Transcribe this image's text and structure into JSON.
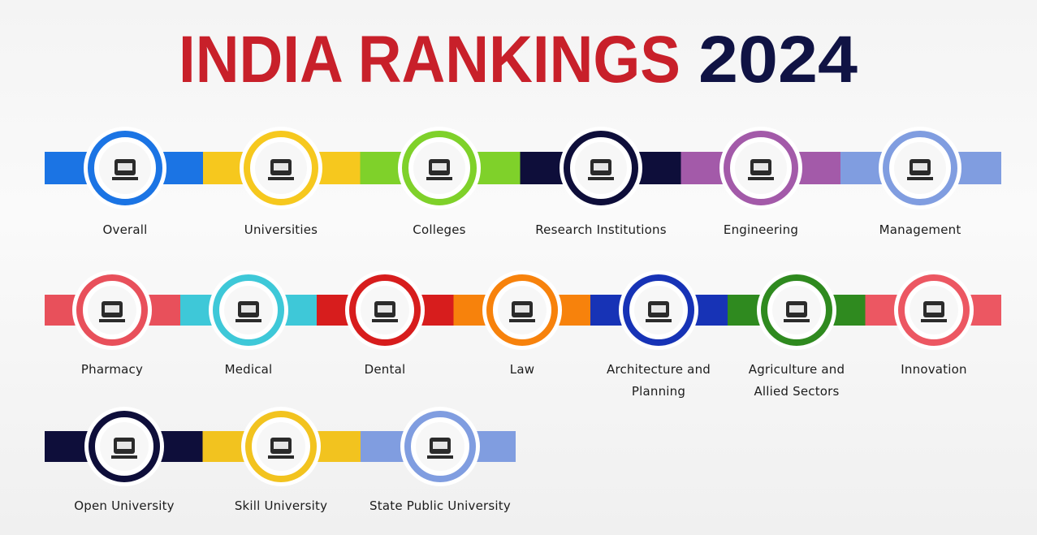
{
  "header": {
    "title": "INDIA RANKINGS",
    "year": "2024"
  },
  "rows": [
    {
      "items": [
        {
          "label": "Overall"
        },
        {
          "label": "Universities"
        },
        {
          "label": "Colleges"
        },
        {
          "label": "Research Institutions"
        },
        {
          "label": "Engineering"
        },
        {
          "label": "Management"
        }
      ]
    },
    {
      "items": [
        {
          "label": "Pharmacy"
        },
        {
          "label": "Medical"
        },
        {
          "label": "Dental"
        },
        {
          "label": "Law"
        },
        {
          "label": "Architecture and Planning"
        },
        {
          "label": "Agriculture and Allied Sectors"
        },
        {
          "label": "Innovation"
        }
      ]
    },
    {
      "items": [
        {
          "label": "Open University"
        },
        {
          "label": "Skill University"
        },
        {
          "label": "State Public University"
        }
      ]
    }
  ]
}
